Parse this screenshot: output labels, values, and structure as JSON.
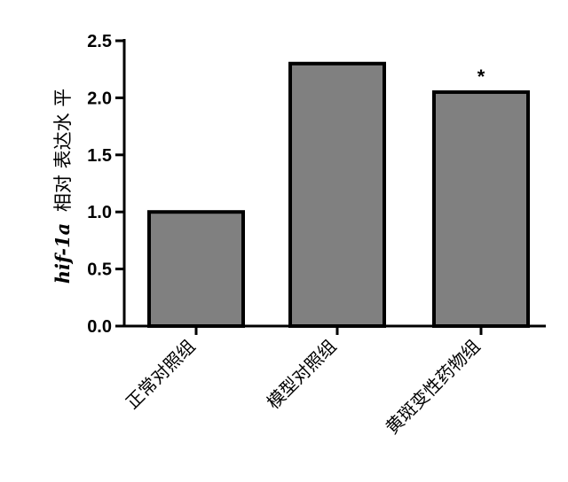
{
  "chart_data": {
    "type": "bar",
    "categories": [
      "正常对照组",
      "模型对照组",
      "黄斑变性药物组"
    ],
    "values": [
      1.0,
      2.3,
      2.05
    ],
    "ylabel_gene": "hif-1a",
    "ylabel_rest": "相对 表达水 平",
    "ylim": [
      0,
      2.5
    ],
    "yticks": [
      "0.0",
      "0.5",
      "1.0",
      "1.5",
      "2.0",
      "2.5"
    ],
    "yticks_values": [
      0,
      0.5,
      1.0,
      1.5,
      2.0,
      2.5
    ],
    "annotations": [
      "",
      "",
      "*"
    ],
    "bar_color": "#808080",
    "edge_color": "#000000",
    "grid": false
  }
}
